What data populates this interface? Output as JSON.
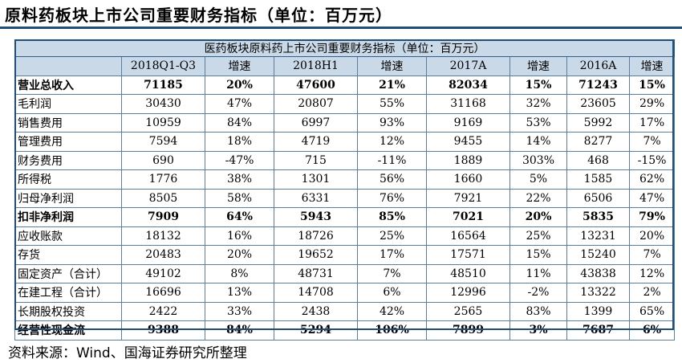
{
  "page_title": "原料药板块上市公司重要财务指标（单位：百万元）",
  "table": {
    "caption": "医药板块原料药上市公司重要财务指标（单位：百万元）",
    "headers": [
      "",
      "2018Q1-Q3",
      "增速",
      "2018H1",
      "增速",
      "2017A",
      "增速",
      "2016A",
      "增速"
    ],
    "rows": [
      {
        "bold": true,
        "cells": [
          "营业总收入",
          "71185",
          "20%",
          "47600",
          "21%",
          "82034",
          "15%",
          "71243",
          "15%"
        ]
      },
      {
        "bold": false,
        "cells": [
          "毛利润",
          "30430",
          "47%",
          "20807",
          "55%",
          "31168",
          "32%",
          "23605",
          "29%"
        ]
      },
      {
        "bold": false,
        "cells": [
          "销售费用",
          "10959",
          "84%",
          "6997",
          "93%",
          "9169",
          "53%",
          "5992",
          "17%"
        ]
      },
      {
        "bold": false,
        "cells": [
          "管理费用",
          "7594",
          "18%",
          "4719",
          "12%",
          "9455",
          "14%",
          "8277",
          "7%"
        ]
      },
      {
        "bold": false,
        "cells": [
          "财务费用",
          "690",
          "-47%",
          "715",
          "-11%",
          "1889",
          "303%",
          "468",
          "-15%"
        ]
      },
      {
        "bold": false,
        "cells": [
          "所得税",
          "1776",
          "38%",
          "1301",
          "56%",
          "1660",
          "5%",
          "1585",
          "62%"
        ]
      },
      {
        "bold": false,
        "cells": [
          "归母净利润",
          "8505",
          "58%",
          "6331",
          "76%",
          "7921",
          "22%",
          "6506",
          "47%"
        ]
      },
      {
        "bold": true,
        "cells": [
          "扣非净利润",
          "7909",
          "64%",
          "5943",
          "85%",
          "7021",
          "20%",
          "5835",
          "79%"
        ]
      },
      {
        "bold": false,
        "cells": [
          "应收账款",
          "18132",
          "16%",
          "18726",
          "25%",
          "16564",
          "25%",
          "13231",
          "20%"
        ]
      },
      {
        "bold": false,
        "cells": [
          "存货",
          "20483",
          "20%",
          "19652",
          "17%",
          "17571",
          "15%",
          "15240",
          "7%"
        ]
      },
      {
        "bold": false,
        "cells": [
          "固定资产（合计）",
          "49102",
          "8%",
          "48731",
          "7%",
          "48510",
          "11%",
          "43838",
          "12%"
        ]
      },
      {
        "bold": false,
        "cells": [
          "在建工程（合计）",
          "16696",
          "13%",
          "14708",
          "6%",
          "12996",
          "-2%",
          "13322",
          "2%"
        ]
      },
      {
        "bold": false,
        "cells": [
          "长期股权投资",
          "2422",
          "33%",
          "2438",
          "42%",
          "2565",
          "83%",
          "1399",
          "65%"
        ]
      },
      {
        "bold": true,
        "cells": [
          "经营性现金流",
          "9388",
          "84%",
          "5294",
          "106%",
          "7899",
          "3%",
          "7687",
          "6%"
        ]
      }
    ]
  },
  "source": "资料来源：Wind、国海证券研究所整理"
}
